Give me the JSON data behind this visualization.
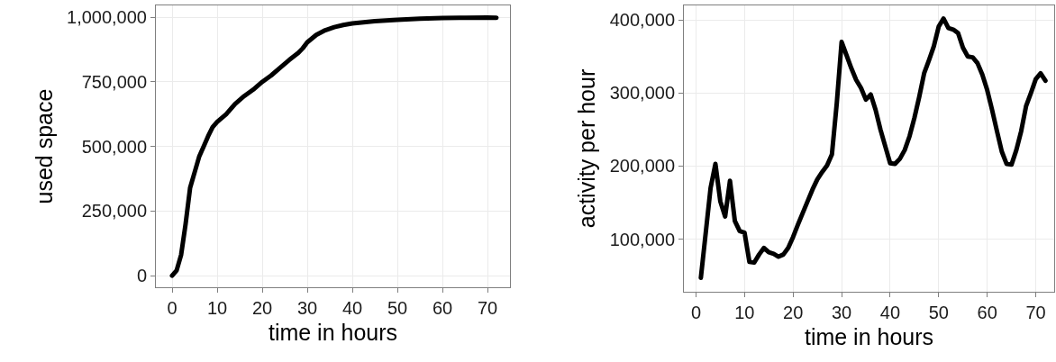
{
  "chart_data": [
    {
      "type": "line",
      "xlabel": "time in hours",
      "ylabel": "used space",
      "x": [
        0,
        1,
        2,
        3,
        4,
        5,
        6,
        7,
        8,
        9,
        10,
        12,
        14,
        16,
        18,
        20,
        22,
        24,
        26,
        28,
        29,
        30,
        32,
        34,
        36,
        38,
        40,
        45,
        50,
        55,
        60,
        65,
        70,
        72
      ],
      "series": [
        {
          "color": "#000000",
          "values": [
            0,
            20000,
            80000,
            200000,
            340000,
            400000,
            460000,
            500000,
            540000,
            575000,
            595000,
            625000,
            665000,
            695000,
            720000,
            750000,
            775000,
            805000,
            835000,
            862000,
            880000,
            903000,
            932000,
            950000,
            962000,
            970000,
            976000,
            985000,
            990000,
            995000,
            997000,
            998000,
            999000,
            998000
          ]
        }
      ],
      "xlim": [
        -3.6,
        75
      ],
      "ylim": [
        -45000,
        1046000
      ],
      "xticks": [
        0,
        10,
        20,
        30,
        40,
        50,
        60,
        70
      ],
      "yticks": [
        {
          "value": 0,
          "label": "0"
        },
        {
          "value": 250000,
          "label": "250,000"
        },
        {
          "value": 500000,
          "label": "500,000"
        },
        {
          "value": 750000,
          "label": "750,000"
        },
        {
          "value": 1000000,
          "label": "1,000,000"
        }
      ],
      "grid": true
    },
    {
      "type": "line",
      "xlabel": "time in hours",
      "ylabel": "activity per hour",
      "x": [
        1,
        3,
        4,
        5,
        6,
        7,
        8,
        9,
        10,
        11,
        12,
        13,
        14,
        15,
        16,
        17,
        18,
        19,
        20,
        21,
        22,
        23,
        24,
        25,
        26,
        27,
        28,
        29,
        30,
        31,
        32,
        33,
        34,
        35,
        36,
        37,
        38,
        39,
        40,
        41,
        42,
        43,
        44,
        45,
        46,
        47,
        48,
        49,
        50,
        51,
        52,
        53,
        54,
        55,
        56,
        57,
        58,
        59,
        60,
        61,
        62,
        63,
        64,
        65,
        66,
        67,
        68,
        69,
        70,
        71,
        72
      ],
      "series": [
        {
          "color": "#000000",
          "values": [
            47000,
            170000,
            203000,
            152000,
            131000,
            180000,
            125000,
            111000,
            109000,
            69000,
            68000,
            79000,
            88000,
            82000,
            80000,
            76000,
            79000,
            88000,
            103000,
            120000,
            136000,
            152000,
            168000,
            182000,
            192000,
            201000,
            216000,
            286000,
            370000,
            352000,
            334000,
            318000,
            307000,
            291000,
            298000,
            277000,
            250000,
            227000,
            204000,
            203000,
            210000,
            222000,
            241000,
            266000,
            295000,
            327000,
            345000,
            364000,
            391000,
            402000,
            389000,
            387000,
            382000,
            362000,
            350000,
            349000,
            341000,
            325000,
            304000,
            277000,
            248000,
            220000,
            203000,
            202000,
            222000,
            248000,
            282000,
            300000,
            319000,
            327000,
            317000
          ]
        }
      ],
      "xlim": [
        -2.5,
        73.8
      ],
      "ylim": [
        28000,
        420000
      ],
      "xticks": [
        0,
        10,
        20,
        30,
        40,
        50,
        60,
        70
      ],
      "yticks": [
        {
          "value": 100000,
          "label": "100,000"
        },
        {
          "value": 200000,
          "label": "200,000"
        },
        {
          "value": 300000,
          "label": "300,000"
        },
        {
          "value": 400000,
          "label": "400,000"
        }
      ],
      "grid": true
    }
  ]
}
